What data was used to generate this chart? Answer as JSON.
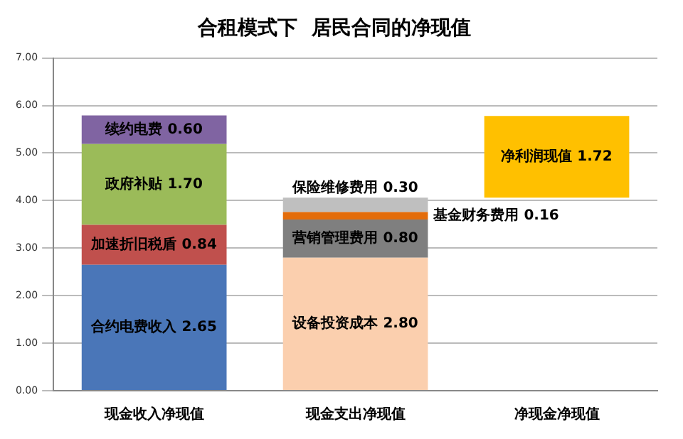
{
  "chart_data": {
    "type": "bar",
    "title": "合租模式下  居民合同的净现值",
    "stacked": true,
    "categories": [
      "现金收入净现值",
      "现金支出净现值",
      "净现金净现值"
    ],
    "series": [
      {
        "name": "合约电费收入",
        "color": "#4a76b8",
        "values": [
          2.65,
          null,
          null
        ],
        "value_labels": [
          "2.65",
          null,
          null
        ]
      },
      {
        "name": "加速折旧税盾",
        "color": "#c0504d",
        "values": [
          0.84,
          null,
          null
        ],
        "value_labels": [
          "0.84",
          null,
          null
        ]
      },
      {
        "name": "政府补贴",
        "color": "#9bbb59",
        "values": [
          1.7,
          null,
          null
        ],
        "value_labels": [
          "1.70",
          null,
          null
        ]
      },
      {
        "name": "续约电费",
        "color": "#8064a2",
        "values": [
          0.6,
          null,
          null
        ],
        "value_labels": [
          "0.60",
          null,
          null
        ]
      },
      {
        "name": "设备投资成本",
        "color": "#fbcfae",
        "values": [
          null,
          2.8,
          null
        ],
        "value_labels": [
          null,
          "2.80",
          null
        ]
      },
      {
        "name": "营销管理费用",
        "color": "#7f7f7f",
        "values": [
          null,
          0.8,
          null
        ],
        "value_labels": [
          null,
          "0.80",
          null
        ]
      },
      {
        "name": "基金财务费用",
        "color": "#e36c0a",
        "values": [
          null,
          0.16,
          null
        ],
        "value_labels": [
          null,
          "0.16",
          null
        ]
      },
      {
        "name": "保险维修费用",
        "color": "#bfbfbf",
        "values": [
          null,
          0.3,
          null
        ],
        "value_labels": [
          null,
          "0.30",
          null
        ]
      },
      {
        "name": "净利润现值",
        "color": "#ffc000",
        "values": [
          null,
          null,
          1.72
        ],
        "base": [
          null,
          null,
          4.06
        ],
        "value_labels": [
          null,
          null,
          "1.72"
        ]
      }
    ],
    "ylim": [
      0,
      7
    ],
    "yticks": [
      {
        "value": 0,
        "label": "0.00"
      },
      {
        "value": 1,
        "label": "1.00"
      },
      {
        "value": 2,
        "label": "2.00"
      },
      {
        "value": 3,
        "label": "3.00"
      },
      {
        "value": 4,
        "label": "4.00"
      },
      {
        "value": 5,
        "label": "5.00"
      },
      {
        "value": 6,
        "label": "6.00"
      },
      {
        "value": 7,
        "label": "7.00"
      }
    ],
    "grid": "y",
    "legend": false
  }
}
